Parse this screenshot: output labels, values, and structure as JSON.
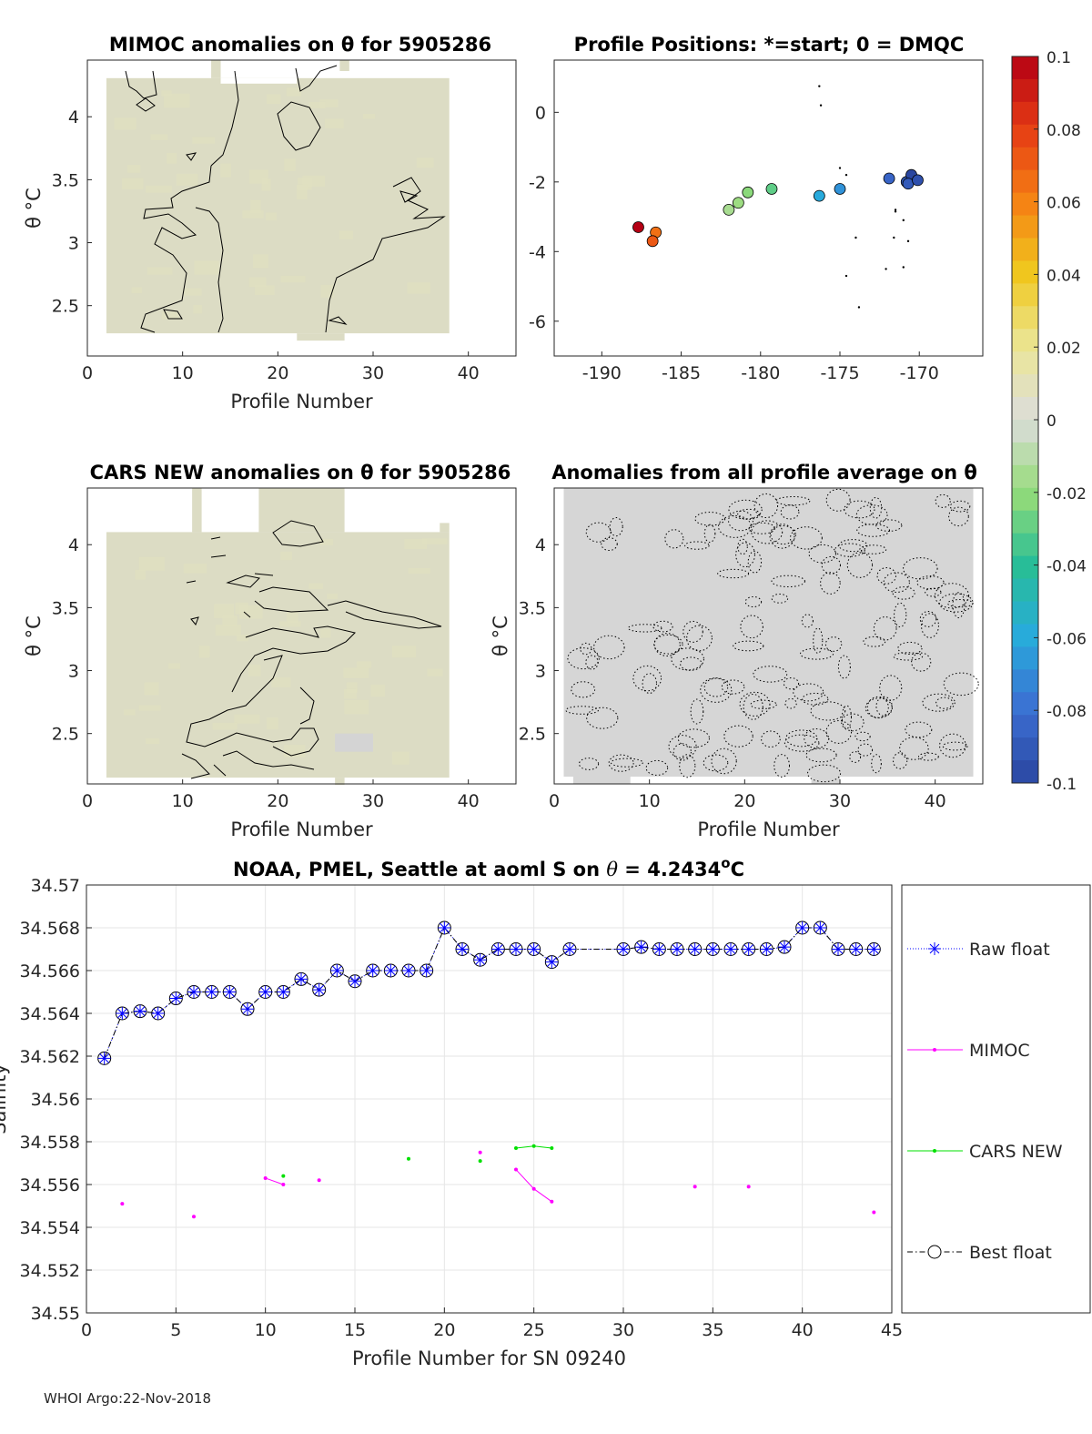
{
  "footer_text": "WHOI Argo:22-Nov-2018",
  "colors": {
    "raw": "#0000ff",
    "mimoc": "#ff00ff",
    "cars": "#00e000",
    "best": "#000000",
    "field_warm": "#dcdcc4",
    "field_neutral": "#d6d6d6"
  },
  "chart_data": [
    {
      "id": "mimoc-panel",
      "type": "heatmap",
      "title": "MIMOC anomalies on θ  for 5905286",
      "xlabel": "Profile Number",
      "ylabel": "θ °C",
      "xlim": [
        0,
        45
      ],
      "ylim": [
        2.1,
        4.45
      ],
      "xticks": [
        "0",
        "10",
        "20",
        "30",
        "40"
      ],
      "yticks": [
        "2.5",
        "3",
        "3.5",
        "4"
      ],
      "data_extent": {
        "x": [
          2,
          38
        ],
        "y": [
          2.28,
          4.35
        ]
      }
    },
    {
      "id": "positions-panel",
      "type": "scatter",
      "title": "Profile Positions: *=start; 0 = DMQC",
      "xlim": [
        -193,
        -166
      ],
      "ylim": [
        -7,
        1.5
      ],
      "xticks": [
        "-190",
        "-185",
        "-180",
        "-175",
        "-170"
      ],
      "yticks": [
        "0",
        "-2",
        "-4",
        "-6"
      ],
      "points": [
        {
          "x": -187.7,
          "y": -3.3,
          "c": 0.1
        },
        {
          "x": -186.6,
          "y": -3.45,
          "c": 0.065
        },
        {
          "x": -186.8,
          "y": -3.7,
          "c": 0.072
        },
        {
          "x": -182.0,
          "y": -2.8,
          "c": -0.015
        },
        {
          "x": -181.4,
          "y": -2.6,
          "c": -0.018
        },
        {
          "x": -180.8,
          "y": -2.3,
          "c": -0.022
        },
        {
          "x": -179.3,
          "y": -2.2,
          "c": -0.03
        },
        {
          "x": -176.3,
          "y": -2.4,
          "c": -0.06
        },
        {
          "x": -175.0,
          "y": -2.2,
          "c": -0.068
        },
        {
          "x": -171.9,
          "y": -1.9,
          "c": -0.085
        },
        {
          "x": -170.8,
          "y": -2.0,
          "c": -0.09
        },
        {
          "x": -170.5,
          "y": -1.8,
          "c": -0.1
        },
        {
          "x": -170.7,
          "y": -2.05,
          "c": -0.09
        },
        {
          "x": -170.1,
          "y": -1.95,
          "c": -0.095
        }
      ],
      "markers": [
        {
          "x": -176.3,
          "y": 0.75
        },
        {
          "x": -176.2,
          "y": 0.2
        },
        {
          "x": -175.0,
          "y": -1.6
        },
        {
          "x": -174.6,
          "y": -1.8
        },
        {
          "x": -171.5,
          "y": -2.8
        },
        {
          "x": -171.5,
          "y": -2.85
        },
        {
          "x": -171.0,
          "y": -3.1
        },
        {
          "x": -174.0,
          "y": -3.6
        },
        {
          "x": -171.6,
          "y": -3.6
        },
        {
          "x": -170.7,
          "y": -3.7
        },
        {
          "x": -172.1,
          "y": -4.5
        },
        {
          "x": -171.0,
          "y": -4.45
        },
        {
          "x": -174.6,
          "y": -4.7
        },
        {
          "x": -173.8,
          "y": -5.6
        }
      ],
      "colorbar": {
        "clim": [
          -0.1,
          0.1
        ],
        "ticks": [
          "0.1",
          "0.08",
          "0.06",
          "0.04",
          "0.02",
          "0",
          "-0.02",
          "-0.04",
          "-0.06",
          "-0.08",
          "-0.1"
        ]
      }
    },
    {
      "id": "cars-panel",
      "type": "heatmap",
      "title": "CARS NEW anomalies on θ for 5905286",
      "xlabel": "Profile Number",
      "ylabel": "θ °C",
      "xlim": [
        0,
        45
      ],
      "ylim": [
        2.1,
        4.45
      ],
      "xticks": [
        "0",
        "10",
        "20",
        "30",
        "40"
      ],
      "yticks": [
        "2.5",
        "3",
        "3.5",
        "4"
      ],
      "data_extent": {
        "x": [
          2,
          38
        ],
        "y": [
          2.15,
          4.1
        ]
      }
    },
    {
      "id": "allavg-panel",
      "type": "heatmap",
      "title": "Anomalies from all profile average on θ",
      "xlabel": "Profile Number",
      "ylabel": "θ °C",
      "xlim": [
        0,
        45
      ],
      "ylim": [
        2.1,
        4.45
      ],
      "xticks": [
        "0",
        "10",
        "20",
        "30",
        "40"
      ],
      "yticks": [
        "2.5",
        "3",
        "3.5",
        "4"
      ],
      "data_extent": {
        "x": [
          1,
          44
        ],
        "y": [
          2.1,
          4.45
        ]
      }
    },
    {
      "id": "salinity-panel",
      "type": "line",
      "title": "NOAA, PMEL, Seattle at aoml S on θ = 4.2434°C",
      "title_main": "NOAA, PMEL, Seattle at aoml S on",
      "title_theta": "θ",
      "title_val": "= 4.2434",
      "title_deg": "o",
      "title_unit": "C",
      "xlabel": "Profile Number for SN 09240",
      "ylabel": "Salinity",
      "xlim": [
        0,
        45
      ],
      "ylim": [
        34.55,
        34.57
      ],
      "xticks": [
        "0",
        "5",
        "10",
        "15",
        "20",
        "25",
        "30",
        "35",
        "40",
        "45"
      ],
      "yticks": [
        "34.55",
        "34.552",
        "34.554",
        "34.556",
        "34.558",
        "34.56",
        "34.562",
        "34.564",
        "34.566",
        "34.568",
        "34.57"
      ],
      "legend": [
        "Raw float",
        "MIMOC",
        "CARS NEW",
        "Best float"
      ],
      "legend_position": "outside-right",
      "series": [
        {
          "name": "Best float",
          "x": [
            1,
            2,
            3,
            4,
            5,
            6,
            7,
            8,
            9,
            10,
            11,
            12,
            13,
            14,
            15,
            16,
            17,
            18,
            19,
            20,
            21,
            22,
            23,
            24,
            25,
            26,
            27,
            30,
            31,
            32,
            33,
            34,
            35,
            36,
            37,
            38,
            39,
            40,
            41,
            42,
            43,
            44
          ],
          "y": [
            34.5619,
            34.564,
            34.5641,
            34.564,
            34.5647,
            34.565,
            34.565,
            34.565,
            34.5642,
            34.565,
            34.565,
            34.5656,
            34.5651,
            34.566,
            34.5655,
            34.566,
            34.566,
            34.566,
            34.566,
            34.568,
            34.567,
            34.5665,
            34.567,
            34.567,
            34.567,
            34.5664,
            34.567,
            34.567,
            34.5671,
            34.567,
            34.567,
            34.567,
            34.567,
            34.567,
            34.567,
            34.567,
            34.5671,
            34.568,
            34.568,
            34.567,
            34.567,
            34.567
          ]
        },
        {
          "name": "MIMOC",
          "segments": [
            {
              "x": [
                2
              ],
              "y": [
                34.5551
              ]
            },
            {
              "x": [
                6
              ],
              "y": [
                34.5545
              ]
            },
            {
              "x": [
                10,
                11
              ],
              "y": [
                34.5563,
                34.556
              ]
            },
            {
              "x": [
                13
              ],
              "y": [
                34.5562
              ]
            },
            {
              "x": [
                22
              ],
              "y": [
                34.5575
              ]
            },
            {
              "x": [
                24,
                25,
                26
              ],
              "y": [
                34.5567,
                34.5558,
                34.5552
              ]
            },
            {
              "x": [
                34
              ],
              "y": [
                34.5559
              ]
            },
            {
              "x": [
                37
              ],
              "y": [
                34.5559
              ]
            },
            {
              "x": [
                44
              ],
              "y": [
                34.5547
              ]
            }
          ]
        },
        {
          "name": "CARS NEW",
          "segments": [
            {
              "x": [
                11
              ],
              "y": [
                34.5564
              ]
            },
            {
              "x": [
                18
              ],
              "y": [
                34.5572
              ]
            },
            {
              "x": [
                22
              ],
              "y": [
                34.5571
              ]
            },
            {
              "x": [
                24,
                25,
                26
              ],
              "y": [
                34.5577,
                34.5578,
                34.5577
              ]
            }
          ]
        }
      ]
    }
  ]
}
